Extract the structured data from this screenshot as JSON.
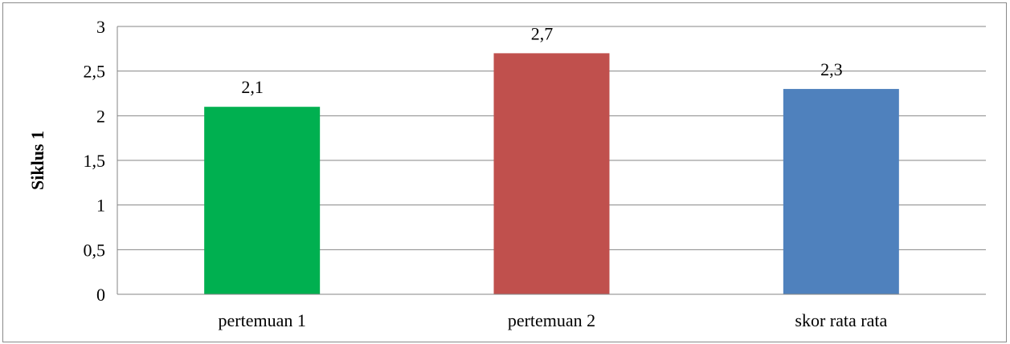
{
  "chart_data": {
    "type": "bar",
    "title": "",
    "xlabel": "",
    "ylabel": "Siklus 1",
    "categories": [
      "pertemuan 1",
      "pertemuan 2",
      "skor rata rata"
    ],
    "values": [
      2.1,
      2.7,
      2.3
    ],
    "data_labels": [
      "2,1",
      "2,7",
      "2,3"
    ],
    "colors": [
      "#00b050",
      "#c0504d",
      "#4f81bd"
    ],
    "ylim": [
      0,
      3
    ],
    "yticks": [
      0,
      0.5,
      1,
      1.5,
      2,
      2.5,
      3
    ],
    "ytick_labels": [
      "0",
      "0,5",
      "1",
      "1,5",
      "2",
      "2,5",
      "3"
    ],
    "grid": true,
    "legend": "none"
  }
}
